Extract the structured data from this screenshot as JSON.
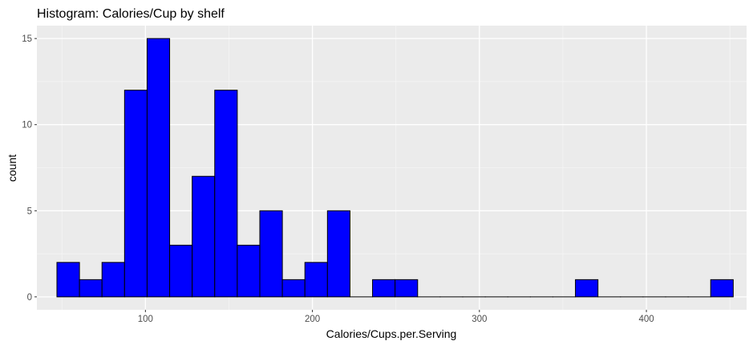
{
  "chart_data": {
    "type": "bar",
    "title": "Histogram: Calories/Cup by shelf",
    "xlabel": "Calories/Cups.per.Serving",
    "ylabel": "count",
    "xlim": [
      35,
      460
    ],
    "ylim": [
      -0.75,
      15.75
    ],
    "x_ticks": [
      100,
      200,
      300,
      400
    ],
    "y_ticks": [
      0,
      5,
      10,
      15
    ],
    "x_tick_labels": [
      "100",
      "200",
      "300",
      "400"
    ],
    "y_tick_labels": [
      "0",
      "5",
      "10",
      "15"
    ],
    "bin_width": 13.5,
    "bin_starts": [
      47,
      60.5,
      74,
      87.5,
      101,
      114.5,
      128,
      141.5,
      155,
      168.5,
      182,
      195.5,
      209,
      222.5,
      236,
      249.5,
      263,
      276.5,
      290,
      303.5,
      317,
      330.5,
      344,
      357.5,
      371,
      384.5,
      398,
      411.5,
      425,
      438.5
    ],
    "counts": [
      2,
      1,
      2,
      12,
      15,
      3,
      7,
      12,
      3,
      5,
      1,
      2,
      5,
      0,
      1,
      1,
      0,
      0,
      0,
      0,
      0,
      0,
      0,
      1,
      0,
      0,
      0,
      0,
      0,
      1
    ],
    "grid": true,
    "colors": {
      "fill": "#0000ff",
      "outline": "#000000",
      "panel": "#ebebeb",
      "grid_major": "#ffffff",
      "grid_minor": "#f5f5f5"
    }
  }
}
